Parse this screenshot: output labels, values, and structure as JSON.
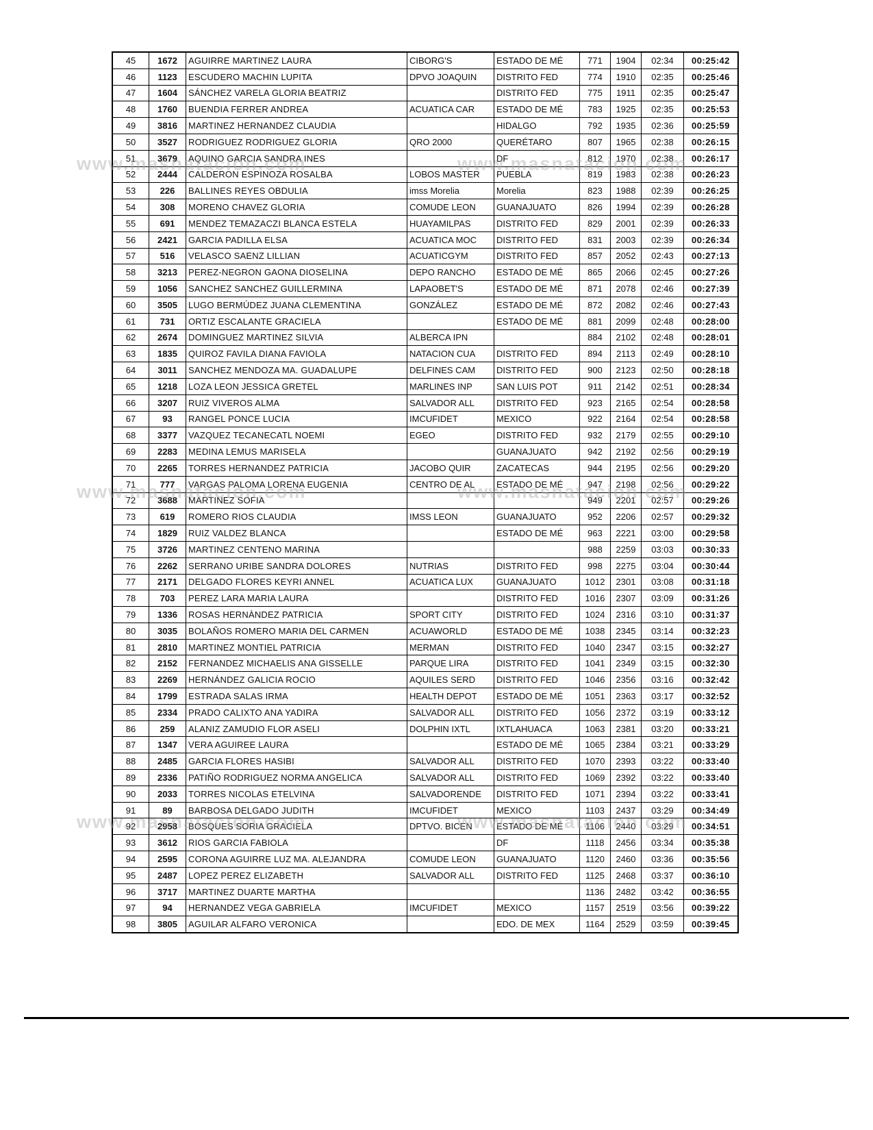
{
  "watermark": {
    "text": "www.masnatacion.com"
  },
  "table": {
    "col_names": [
      "col-position",
      "col-bib-number",
      "col-athlete-name",
      "col-team",
      "col-state",
      "col-overall-number",
      "col-sequence-number",
      "col-pace",
      "col-finish-time"
    ],
    "rows": [
      [
        "45",
        "1672",
        "AGUIRRE MARTINEZ LAURA",
        "CIBORG'S",
        "ESTADO DE MÉ",
        "771",
        "1904",
        "02:34",
        "00:25:42"
      ],
      [
        "46",
        "1123",
        "ESCUDERO MACHIN LUPITA",
        "DPVO JOAQUIN",
        "DISTRITO FED",
        "774",
        "1910",
        "02:35",
        "00:25:46"
      ],
      [
        "47",
        "1604",
        "SÁNCHEZ VARELA GLORIA BEATRIZ",
        "",
        "DISTRITO FED",
        "775",
        "1911",
        "02:35",
        "00:25:47"
      ],
      [
        "48",
        "1760",
        "BUENDIA FERRER ANDREA",
        "ACUATICA CAR",
        "ESTADO DE MÉ",
        "783",
        "1925",
        "02:35",
        "00:25:53"
      ],
      [
        "49",
        "3816",
        "MARTINEZ HERNANDEZ CLAUDIA",
        "",
        "HIDALGO",
        "792",
        "1935",
        "02:36",
        "00:25:59"
      ],
      [
        "50",
        "3527",
        "RODRIGUEZ RODRIGUEZ GLORIA",
        "QRO 2000",
        "QUERÉTARO",
        "807",
        "1965",
        "02:38",
        "00:26:15"
      ],
      [
        "51",
        "3679",
        "AQUINO GARCIA SANDRA INES",
        "",
        "DF",
        "812",
        "1970",
        "02:38",
        "00:26:17"
      ],
      [
        "52",
        "2444",
        "CALDERON ESPINOZA ROSALBA",
        "LOBOS MASTER",
        "PUEBLA",
        "819",
        "1983",
        "02:38",
        "00:26:23"
      ],
      [
        "53",
        "226",
        "BALLINES REYES OBDULIA",
        "imss Morelia",
        "Morelia",
        "823",
        "1988",
        "02:39",
        "00:26:25"
      ],
      [
        "54",
        "308",
        "MORENO CHAVEZ GLORIA",
        "COMUDE LEON",
        "GUANAJUATO",
        "826",
        "1994",
        "02:39",
        "00:26:28"
      ],
      [
        "55",
        "691",
        "MENDEZ TEMAZACZI BLANCA ESTELA",
        "HUAYAMILPAS",
        "DISTRITO FED",
        "829",
        "2001",
        "02:39",
        "00:26:33"
      ],
      [
        "56",
        "2421",
        "GARCIA PADILLA ELSA",
        "ACUATICA MOC",
        "DISTRITO FED",
        "831",
        "2003",
        "02:39",
        "00:26:34"
      ],
      [
        "57",
        "516",
        "VELASCO SAENZ LILLIAN",
        "ACUATICGYM",
        "DISTRITO FED",
        "857",
        "2052",
        "02:43",
        "00:27:13"
      ],
      [
        "58",
        "3213",
        "PEREZ-NEGRON GAONA DIOSELINA",
        "DEPO RANCHO",
        "ESTADO DE MÉ",
        "865",
        "2066",
        "02:45",
        "00:27:26"
      ],
      [
        "59",
        "1056",
        "SANCHEZ SANCHEZ GUILLERMINA",
        "LAPAOBET'S",
        "ESTADO DE MÉ",
        "871",
        "2078",
        "02:46",
        "00:27:39"
      ],
      [
        "60",
        "3505",
        "LUGO BERMÚDEZ JUANA CLEMENTINA",
        "GONZÁLEZ",
        "ESTADO DE MÉ",
        "872",
        "2082",
        "02:46",
        "00:27:43"
      ],
      [
        "61",
        "731",
        "ORTIZ ESCALANTE GRACIELA",
        "",
        "ESTADO DE MÉ",
        "881",
        "2099",
        "02:48",
        "00:28:00"
      ],
      [
        "62",
        "2674",
        "DOMINGUEZ MARTINEZ SILVIA",
        "ALBERCA IPN",
        "",
        "884",
        "2102",
        "02:48",
        "00:28:01"
      ],
      [
        "63",
        "1835",
        "QUIROZ FAVILA DIANA FAVIOLA",
        "NATACION CUA",
        "DISTRITO FED",
        "894",
        "2113",
        "02:49",
        "00:28:10"
      ],
      [
        "64",
        "3011",
        "SANCHEZ MENDOZA MA. GUADALUPE",
        "DELFINES CAM",
        "DISTRITO FED",
        "900",
        "2123",
        "02:50",
        "00:28:18"
      ],
      [
        "65",
        "1218",
        "LOZA LEON JESSICA GRETEL",
        "MARLINES INP",
        "SAN LUIS POT",
        "911",
        "2142",
        "02:51",
        "00:28:34"
      ],
      [
        "66",
        "3207",
        "RUIZ VIVEROS ALMA",
        "SALVADOR ALL",
        "DISTRITO FED",
        "923",
        "2165",
        "02:54",
        "00:28:58"
      ],
      [
        "67",
        "93",
        "RANGEL PONCE LUCIA",
        "IMCUFIDET",
        "MEXICO",
        "922",
        "2164",
        "02:54",
        "00:28:58"
      ],
      [
        "68",
        "3377",
        "VAZQUEZ TECANECATL NOEMI",
        "EGEO",
        "DISTRITO FED",
        "932",
        "2179",
        "02:55",
        "00:29:10"
      ],
      [
        "69",
        "2283",
        "MEDINA LEMUS MARISELA",
        "",
        "GUANAJUATO",
        "942",
        "2192",
        "02:56",
        "00:29:19"
      ],
      [
        "70",
        "2265",
        "TORRES HERNANDEZ PATRICIA",
        "JACOBO QUIR",
        "ZACATECAS",
        "944",
        "2195",
        "02:56",
        "00:29:20"
      ],
      [
        "71",
        "777",
        "VARGAS PALOMA LORENA EUGENIA",
        "CENTRO DE AL",
        "ESTADO DE MÉ",
        "947",
        "2198",
        "02:56",
        "00:29:22"
      ],
      [
        "72",
        "3688",
        "MARTINEZ SOFIA",
        "",
        "",
        "949",
        "2201",
        "02:57",
        "00:29:26"
      ],
      [
        "73",
        "619",
        "ROMERO RIOS CLAUDIA",
        "IMSS LEON",
        "GUANAJUATO",
        "952",
        "2206",
        "02:57",
        "00:29:32"
      ],
      [
        "74",
        "1829",
        "RUIZ VALDEZ BLANCA",
        "",
        "ESTADO DE MÉ",
        "963",
        "2221",
        "03:00",
        "00:29:58"
      ],
      [
        "75",
        "3726",
        "MARTINEZ CENTENO MARINA",
        "",
        "",
        "988",
        "2259",
        "03:03",
        "00:30:33"
      ],
      [
        "76",
        "2262",
        "SERRANO URIBE SANDRA DOLORES",
        "NUTRIAS",
        "DISTRITO FED",
        "998",
        "2275",
        "03:04",
        "00:30:44"
      ],
      [
        "77",
        "2171",
        "DELGADO FLORES KEYRI ANNEL",
        "ACUATICA LUX",
        "GUANAJUATO",
        "1012",
        "2301",
        "03:08",
        "00:31:18"
      ],
      [
        "78",
        "703",
        "PEREZ LARA MARIA LAURA",
        "",
        "DISTRITO FED",
        "1016",
        "2307",
        "03:09",
        "00:31:26"
      ],
      [
        "79",
        "1336",
        "ROSAS HERNÀNDEZ PATRICIA",
        "SPORT CITY",
        "DISTRITO FED",
        "1024",
        "2316",
        "03:10",
        "00:31:37"
      ],
      [
        "80",
        "3035",
        "BOLAÑOS ROMERO MARIA DEL CARMEN",
        "ACUAWORLD",
        "ESTADO DE MÉ",
        "1038",
        "2345",
        "03:14",
        "00:32:23"
      ],
      [
        "81",
        "2810",
        "MARTINEZ MONTIEL PATRICIA",
        "MERMAN",
        "DISTRITO FED",
        "1040",
        "2347",
        "03:15",
        "00:32:27"
      ],
      [
        "82",
        "2152",
        "FERNANDEZ MICHAELIS ANA GISSELLE",
        "PARQUE LIRA",
        "DISTRITO FED",
        "1041",
        "2349",
        "03:15",
        "00:32:30"
      ],
      [
        "83",
        "2269",
        "HERNÁNDEZ GALICIA ROCIO",
        "AQUILES SERD",
        "DISTRITO FED",
        "1046",
        "2356",
        "03:16",
        "00:32:42"
      ],
      [
        "84",
        "1799",
        "ESTRADA SALAS IRMA",
        "HEALTH DEPOT",
        "ESTADO DE MÉ",
        "1051",
        "2363",
        "03:17",
        "00:32:52"
      ],
      [
        "85",
        "2334",
        "PRADO CALIXTO ANA YADIRA",
        "SALVADOR ALL",
        "DISTRITO FED",
        "1056",
        "2372",
        "03:19",
        "00:33:12"
      ],
      [
        "86",
        "259",
        "ALANIZ ZAMUDIO FLOR ASELI",
        "DOLPHIN IXTL",
        "IXTLAHUACA",
        "1063",
        "2381",
        "03:20",
        "00:33:21"
      ],
      [
        "87",
        "1347",
        "VERA AGUIREE LAURA",
        "",
        "ESTADO DE MÉ",
        "1065",
        "2384",
        "03:21",
        "00:33:29"
      ],
      [
        "88",
        "2485",
        "GARCIA FLORES HASIBI",
        "SALVADOR ALL",
        "DISTRITO FED",
        "1070",
        "2393",
        "03:22",
        "00:33:40"
      ],
      [
        "89",
        "2336",
        "PATIÑO RODRIGUEZ NORMA ANGELICA",
        "SALVADOR ALL",
        "DISTRITO FED",
        "1069",
        "2392",
        "03:22",
        "00:33:40"
      ],
      [
        "90",
        "2033",
        "TORRES NICOLAS ETELVINA",
        "SALVADORENDE",
        "DISTRITO FED",
        "1071",
        "2394",
        "03:22",
        "00:33:41"
      ],
      [
        "91",
        "89",
        "BARBOSA DELGADO JUDITH",
        "IMCUFIDET",
        "MEXICO",
        "1103",
        "2437",
        "03:29",
        "00:34:49"
      ],
      [
        "92",
        "2958",
        "BOSQUES SORIA GRACIELA",
        "DPTVO. BICEN",
        "ESTADO DE MÉ",
        "1106",
        "2440",
        "03:29",
        "00:34:51"
      ],
      [
        "93",
        "3612",
        "RIOS GARCIA FABIOLA",
        "",
        "DF",
        "1118",
        "2456",
        "03:34",
        "00:35:38"
      ],
      [
        "94",
        "2595",
        "CORONA AGUIRRE LUZ MA. ALEJANDRA",
        "COMUDE LEON",
        "GUANAJUATO",
        "1120",
        "2460",
        "03:36",
        "00:35:56"
      ],
      [
        "95",
        "2487",
        "LOPEZ PEREZ ELIZABETH",
        "SALVADOR ALL",
        "DISTRITO FED",
        "1125",
        "2468",
        "03:37",
        "00:36:10"
      ],
      [
        "96",
        "3717",
        "MARTINEZ DUARTE MARTHA",
        "",
        "",
        "1136",
        "2482",
        "03:42",
        "00:36:55"
      ],
      [
        "97",
        "94",
        "HERNANDEZ VEGA GABRIELA",
        "IMCUFIDET",
        "MEXICO",
        "1157",
        "2519",
        "03:56",
        "00:39:22"
      ],
      [
        "98",
        "3805",
        "AGUILAR ALFARO VERONICA",
        "",
        "EDO. DE MEX",
        "1164",
        "2529",
        "03:59",
        "00:39:45"
      ]
    ]
  }
}
